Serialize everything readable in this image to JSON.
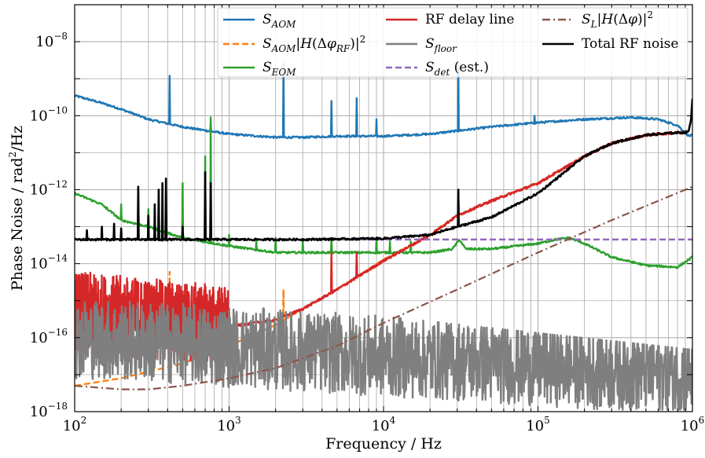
{
  "chart_data": {
    "type": "line",
    "xscale": "log",
    "yscale": "log",
    "xlim": [
      100,
      1000000
    ],
    "ylim": [
      1e-18,
      1e-07
    ],
    "xlabel": "Frequency / Hz",
    "ylabel": "Phase Noise / rad²/Hz",
    "ylabel_main": "Phase Noise / rad",
    "ylabel_sup": "2",
    "ylabel_tail": "/Hz",
    "grid": "major and minor on both axes",
    "legend_position": "top-right (three columns)",
    "x_ticks": [
      {
        "value": 100,
        "base": "10",
        "exp": "2"
      },
      {
        "value": 1000,
        "base": "10",
        "exp": "3"
      },
      {
        "value": 10000,
        "base": "10",
        "exp": "4"
      },
      {
        "value": 100000,
        "base": "10",
        "exp": "5"
      },
      {
        "value": 1000000,
        "base": "10",
        "exp": "6"
      }
    ],
    "y_ticks": [
      {
        "value": 1e-18,
        "base": "10",
        "exp": "−18"
      },
      {
        "value": 1e-16,
        "base": "10",
        "exp": "−16"
      },
      {
        "value": 1e-14,
        "base": "10",
        "exp": "−14"
      },
      {
        "value": 1e-12,
        "base": "10",
        "exp": "−12"
      },
      {
        "value": 1e-10,
        "base": "10",
        "exp": "−10"
      },
      {
        "value": 1e-08,
        "base": "10",
        "exp": "−8"
      }
    ],
    "series": [
      {
        "id": "s_aom",
        "name": "S_AOM",
        "legend_parts": [
          {
            "t": "S",
            "i": true
          },
          {
            "t": "AOM",
            "i": true,
            "sub": true
          }
        ],
        "color": "#1f77b4",
        "dash": "solid",
        "width": 2.4,
        "legend_col": 0,
        "x": [
          100,
          150,
          200,
          300,
          500,
          700,
          1000,
          2000,
          3000,
          5000,
          10000,
          20000,
          50000,
          80000,
          100000,
          200000,
          400000,
          600000,
          800000,
          900000,
          950000,
          1000000
        ],
        "y": [
          3.5e-10,
          2.2e-10,
          1.5e-10,
          8e-11,
          5e-11,
          4e-11,
          3.2e-11,
          2.6e-11,
          2.6e-11,
          2.8e-11,
          2.8e-11,
          3.2e-11,
          5e-11,
          6e-11,
          6.5e-11,
          8e-11,
          9e-11,
          8e-11,
          5.5e-11,
          3.5e-11,
          2.8e-11,
          3e-11
        ],
        "spikes": [
          {
            "x": 412,
            "y": 1.2e-09
          },
          {
            "x": 530,
            "y": 5e-11
          },
          {
            "x": 760,
            "y": 6e-11
          },
          {
            "x": 2250,
            "y": 2.5e-09
          },
          {
            "x": 4600,
            "y": 2.5e-10
          },
          {
            "x": 6700,
            "y": 3e-10
          },
          {
            "x": 9000,
            "y": 8e-11
          },
          {
            "x": 30500,
            "y": 2e-09
          },
          {
            "x": 95000,
            "y": 1e-10
          }
        ]
      },
      {
        "id": "s_aom_h",
        "name": "S_AOM|H(Δφ_RF)|²",
        "legend_parts": [
          {
            "t": "S",
            "i": true
          },
          {
            "t": "AOM",
            "i": true,
            "sub": true
          },
          {
            "t": "|"
          },
          {
            "t": "H",
            "i": true
          },
          {
            "t": "(Δ"
          },
          {
            "t": "φ",
            "i": true
          },
          {
            "t": "RF",
            "i": true,
            "sub": true
          },
          {
            "t": ")|"
          },
          {
            "t": "2",
            "sup": true
          }
        ],
        "color": "#ff7f0e",
        "dash": "8 4",
        "width": 2.4,
        "legend_col": 0,
        "x": [
          100,
          200,
          300,
          500,
          1000,
          2000,
          3000,
          5000,
          10000,
          20000,
          30000,
          50000,
          100000,
          200000,
          300000,
          500000,
          800000,
          900000
        ],
        "y": [
          5e-18,
          8e-18,
          1.2e-17,
          2e-17,
          6e-17,
          2.2e-16,
          6e-16,
          2e-15,
          1.3e-14,
          6e-14,
          2e-13,
          5e-13,
          1.5e-12,
          8e-12,
          1.8e-11,
          3e-11,
          3.5e-11,
          3.5e-11
        ],
        "spikes": [
          {
            "x": 412,
            "y": 6e-15
          },
          {
            "x": 2250,
            "y": 2e-15
          },
          {
            "x": 4600,
            "y": 2e-14
          },
          {
            "x": 6700,
            "y": 2e-14
          },
          {
            "x": 30500,
            "y": 5e-13
          }
        ]
      },
      {
        "id": "s_eom",
        "name": "S_EOM",
        "legend_parts": [
          {
            "t": "S",
            "i": true
          },
          {
            "t": "EOM",
            "i": true,
            "sub": true
          }
        ],
        "color": "#2ca02c",
        "dash": "solid",
        "width": 2.4,
        "legend_col": 0,
        "x": [
          100,
          150,
          200,
          300,
          500,
          1000,
          2000,
          5000,
          10000,
          20000,
          28000,
          31000,
          34000,
          50000,
          100000,
          130000,
          160000,
          200000,
          300000,
          500000,
          800000,
          1000000
        ],
        "y": [
          8e-13,
          4e-13,
          1.5e-13,
          1e-13,
          5e-14,
          3e-14,
          2e-14,
          2e-14,
          2e-14,
          2e-14,
          2.5e-14,
          4.5e-14,
          2.5e-14,
          2.5e-14,
          3.5e-14,
          4.5e-14,
          5e-14,
          3.5e-14,
          1.5e-14,
          9e-15,
          8e-15,
          1.5e-14
        ],
        "spikes": [
          {
            "x": 160,
            "y": 3e-13
          },
          {
            "x": 200,
            "y": 4e-13
          },
          {
            "x": 258,
            "y": 1e-12
          },
          {
            "x": 300,
            "y": 3e-13
          },
          {
            "x": 350,
            "y": 6e-13
          },
          {
            "x": 390,
            "y": 5e-13
          },
          {
            "x": 500,
            "y": 1.5e-12
          },
          {
            "x": 700,
            "y": 8e-12
          },
          {
            "x": 760,
            "y": 9e-11
          },
          {
            "x": 1000,
            "y": 6e-14
          },
          {
            "x": 1500,
            "y": 4e-14
          },
          {
            "x": 2000,
            "y": 5e-14
          },
          {
            "x": 3000,
            "y": 4e-14
          },
          {
            "x": 4600,
            "y": 5e-14
          },
          {
            "x": 9000,
            "y": 5e-14
          },
          {
            "x": 11000,
            "y": 4e-14
          },
          {
            "x": 15000,
            "y": 4e-14
          }
        ]
      },
      {
        "id": "rf_delay",
        "name": "RF delay line",
        "legend_parts": [
          {
            "t": "RF delay line"
          }
        ],
        "color": "#d62728",
        "dash": "solid",
        "width": 2.4,
        "legend_col": 1,
        "x": [
          100,
          1000,
          2000,
          3000,
          5000,
          10000,
          20000,
          30000,
          50000,
          100000,
          200000,
          300000,
          500000,
          800000,
          900000
        ],
        "y": [
          5e-16,
          2e-16,
          3e-16,
          6e-16,
          2e-15,
          1.2e-14,
          6e-14,
          2e-13,
          5e-13,
          1.5e-12,
          8e-12,
          1.8e-11,
          3e-11,
          3.5e-11,
          3.5e-11
        ],
        "noisy": {
          "x_start": 100,
          "x_end": 1000,
          "lo": 1e-17,
          "hi": 3e-14
        },
        "spikes": [
          {
            "x": 4600,
            "y": 2e-14
          },
          {
            "x": 6700,
            "y": 2e-14
          },
          {
            "x": 30500,
            "y": 5e-13
          }
        ]
      },
      {
        "id": "s_floor",
        "name": "S_floor",
        "legend_parts": [
          {
            "t": "S",
            "i": true
          },
          {
            "t": "floor",
            "i": true,
            "sub": true
          }
        ],
        "color": "#7f7f7f",
        "dash": "solid",
        "width": 2.4,
        "legend_col": 1,
        "noisy": {
          "x_start": 100,
          "x_end": 1000000,
          "lo": 1e-18,
          "hi": 3e-15
        },
        "x": [
          100,
          1000000
        ],
        "y": [
          1e-16,
          1e-17
        ]
      },
      {
        "id": "s_det",
        "name": "S_det (est.)",
        "legend_parts": [
          {
            "t": "S",
            "i": true
          },
          {
            "t": "det",
            "i": true,
            "sub": true
          },
          {
            "t": " (est.)"
          }
        ],
        "color": "#9467bd",
        "dash": "8 4",
        "width": 2.4,
        "legend_col": 1,
        "x": [
          100,
          1000000
        ],
        "y": [
          4.5e-14,
          4.5e-14
        ]
      },
      {
        "id": "s_l_h",
        "name": "S_L|H(Δφ)|²",
        "legend_parts": [
          {
            "t": "S",
            "i": true
          },
          {
            "t": "L",
            "i": true,
            "sub": true
          },
          {
            "t": "|"
          },
          {
            "t": "H",
            "i": true
          },
          {
            "t": "(Δ"
          },
          {
            "t": "φ",
            "i": true
          },
          {
            "t": ")|"
          },
          {
            "t": "2",
            "sup": true
          }
        ],
        "color": "#8c564b",
        "dash": "10 4 2 4",
        "width": 2.2,
        "legend_col": 2,
        "x": [
          100,
          200,
          300,
          500,
          1000,
          2000,
          5000,
          10000,
          30000,
          100000,
          300000,
          1000000
        ],
        "y": [
          5e-18,
          4e-18,
          4e-18,
          5e-18,
          8e-18,
          1.5e-17,
          6e-17,
          2.5e-16,
          2e-15,
          2e-14,
          1.5e-13,
          1.2e-12
        ]
      },
      {
        "id": "total",
        "name": "Total RF noise",
        "legend_parts": [
          {
            "t": "Total RF noise"
          }
        ],
        "color": "#000000",
        "dash": "solid",
        "width": 2.6,
        "legend_col": 2,
        "x": [
          100,
          300,
          1000,
          3000,
          10000,
          20000,
          30000,
          50000,
          100000,
          200000,
          300000,
          500000,
          800000,
          900000,
          950000,
          980000,
          1000000
        ],
        "y": [
          4.5e-14,
          4.5e-14,
          4.5e-14,
          4.5e-14,
          4.8e-14,
          6e-14,
          1e-13,
          1.8e-13,
          8e-13,
          8e-12,
          1.8e-11,
          3e-11,
          3.5e-11,
          3.5e-11,
          4e-11,
          8e-11,
          3e-10
        ],
        "spikes": [
          {
            "x": 120,
            "y": 8e-14
          },
          {
            "x": 150,
            "y": 1e-13
          },
          {
            "x": 180,
            "y": 1.2e-13
          },
          {
            "x": 200,
            "y": 9e-14
          },
          {
            "x": 258,
            "y": 1.2e-12
          },
          {
            "x": 300,
            "y": 2e-13
          },
          {
            "x": 330,
            "y": 4e-13
          },
          {
            "x": 350,
            "y": 1e-12
          },
          {
            "x": 370,
            "y": 1.5e-12
          },
          {
            "x": 390,
            "y": 2e-12
          },
          {
            "x": 500,
            "y": 1e-13
          },
          {
            "x": 700,
            "y": 3e-12
          },
          {
            "x": 760,
            "y": 1.5e-12
          },
          {
            "x": 30500,
            "y": 1e-12
          }
        ]
      }
    ]
  }
}
